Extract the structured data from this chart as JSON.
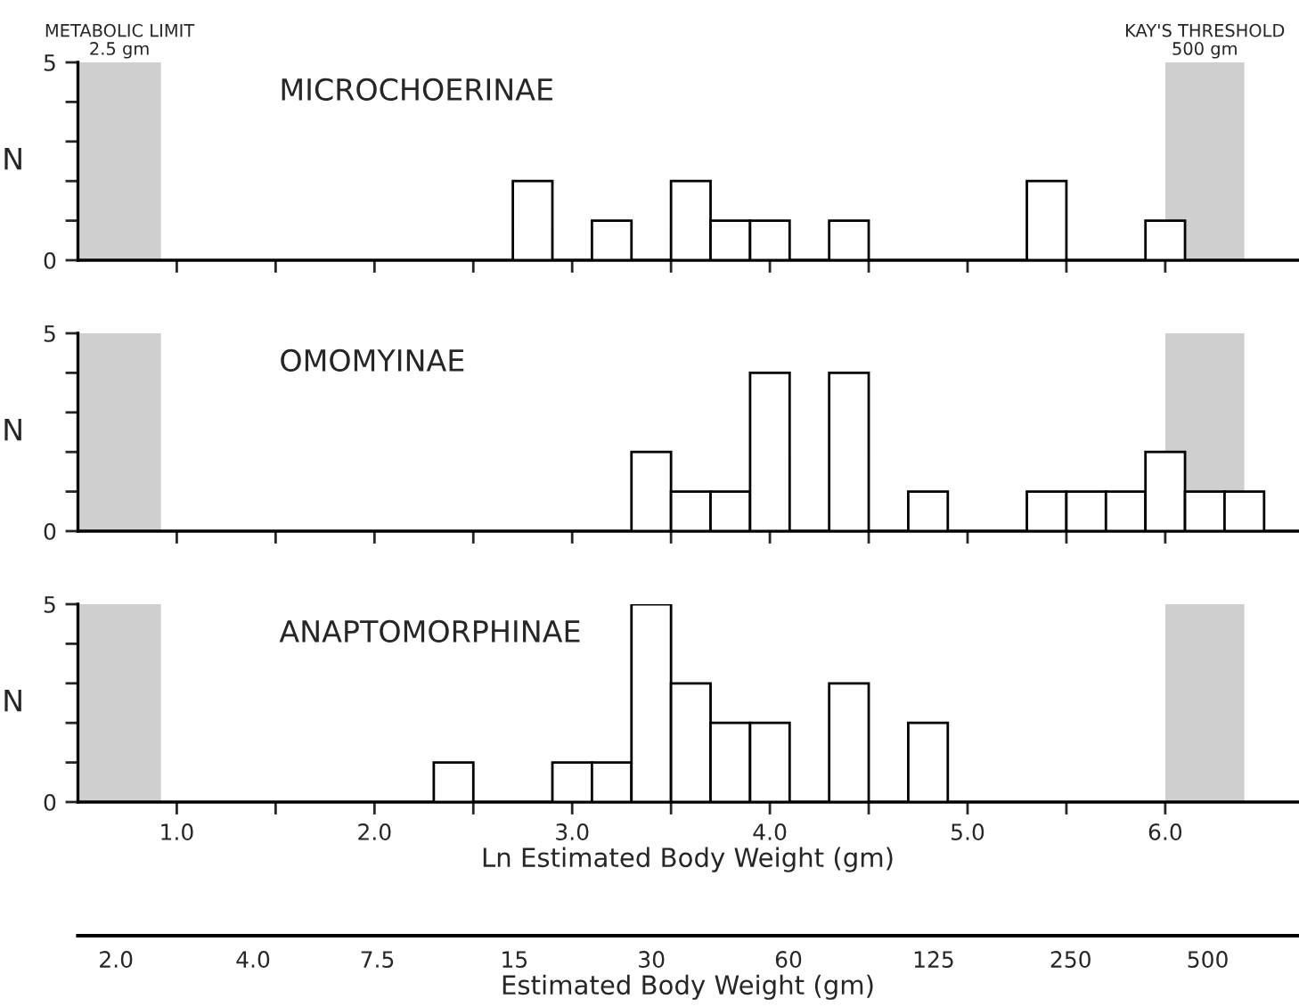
{
  "chart_data": [
    {
      "type": "histogram",
      "title": "MICROCHOERINAE",
      "ylabel": "N",
      "color": "#ffffff",
      "bins": [
        2.3,
        2.5,
        2.7,
        2.9,
        3.1,
        3.3,
        3.5,
        3.7,
        3.9,
        4.1,
        4.3,
        4.5,
        4.7,
        4.9,
        5.1,
        5.3,
        5.5,
        5.7,
        5.9,
        6.1,
        6.3,
        6.5
      ],
      "values": [
        0,
        0,
        2,
        0,
        1,
        0,
        2,
        1,
        1,
        0,
        1,
        0,
        0,
        0,
        0,
        2,
        0,
        0,
        1,
        0,
        0
      ],
      "xlim": [
        0.5,
        6.67
      ],
      "ylim": [
        0,
        5
      ],
      "xticks": [
        1.0,
        {
          "value": 1.5,
          "label": null
        },
        2.0,
        {
          "value": 2.5,
          "label": null
        },
        3.0,
        {
          "value": 3.5,
          "label": null
        },
        4.0,
        {
          "value": 4.5,
          "label": null
        },
        5.0,
        {
          "value": 5.5,
          "label": null
        },
        6.0
      ],
      "yticks": [
        0,
        {
          "value": 1,
          "label": null
        },
        {
          "value": 2,
          "label": null
        },
        {
          "value": 3,
          "label": null
        },
        {
          "value": 4,
          "label": null
        },
        5
      ],
      "tick_labels": "y",
      "grid": false,
      "bands": [
        {
          "axis": "x",
          "from": 0.5,
          "to": 0.92,
          "label": "METABOLIC LIMIT\n2.5 gm",
          "color": "#cfcfcf"
        },
        {
          "axis": "x",
          "from": 6.0,
          "to": 6.4,
          "label": "KAY'S THRESHOLD\n500 gm",
          "color": "#cfcfcf"
        }
      ]
    },
    {
      "type": "histogram",
      "title": "OMOMYINAE",
      "ylabel": "N",
      "color": "#ffffff",
      "bins": [
        2.3,
        2.5,
        2.7,
        2.9,
        3.1,
        3.3,
        3.5,
        3.7,
        3.9,
        4.1,
        4.3,
        4.5,
        4.7,
        4.9,
        5.1,
        5.3,
        5.5,
        5.7,
        5.9,
        6.1,
        6.3,
        6.5
      ],
      "values": [
        0,
        0,
        0,
        0,
        0,
        2,
        1,
        1,
        4,
        0,
        4,
        0,
        1,
        0,
        0,
        1,
        1,
        1,
        2,
        1,
        1
      ],
      "xlim": [
        0.5,
        6.67
      ],
      "ylim": [
        0,
        5
      ],
      "xticks": [
        1.0,
        {
          "value": 1.5,
          "label": null
        },
        2.0,
        {
          "value": 2.5,
          "label": null
        },
        3.0,
        {
          "value": 3.5,
          "label": null
        },
        4.0,
        {
          "value": 4.5,
          "label": null
        },
        5.0,
        {
          "value": 5.5,
          "label": null
        },
        6.0
      ],
      "yticks": [
        0,
        {
          "value": 1,
          "label": null
        },
        {
          "value": 2,
          "label": null
        },
        {
          "value": 3,
          "label": null
        },
        {
          "value": 4,
          "label": null
        },
        5
      ],
      "tick_labels": "y",
      "grid": false,
      "bands": [
        {
          "axis": "x",
          "from": 0.5,
          "to": 0.92,
          "color": "#cfcfcf"
        },
        {
          "axis": "x",
          "from": 6.0,
          "to": 6.4,
          "color": "#cfcfcf"
        }
      ]
    },
    {
      "type": "histogram",
      "title": "ANAPTOMORPHINAE",
      "ylabel": "N",
      "xlabel": "Ln Estimated Body Weight (gm)",
      "x2label": "Estimated Body Weight (gm)",
      "color": "#ffffff",
      "bins": [
        2.3,
        2.5,
        2.7,
        2.9,
        3.1,
        3.3,
        3.5,
        3.7,
        3.9,
        4.1,
        4.3,
        4.5,
        4.7,
        4.9,
        5.1,
        5.3,
        5.5,
        5.7,
        5.9,
        6.1,
        6.3,
        6.5
      ],
      "values": [
        1,
        0,
        0,
        1,
        1,
        5,
        3,
        2,
        2,
        0,
        3,
        0,
        2,
        0,
        0,
        0,
        0,
        0,
        0,
        0,
        0
      ],
      "xlim": [
        0.5,
        6.67
      ],
      "ylim": [
        0,
        5
      ],
      "x2lim": [
        1.65,
        788
      ],
      "log": "x2",
      "xticks": [
        {
          "value": 1,
          "label": "1.0"
        },
        {
          "value": 1.5,
          "label": null
        },
        {
          "value": 2,
          "label": "2.0"
        },
        {
          "value": 2.5,
          "label": null
        },
        {
          "value": 3,
          "label": "3.0"
        },
        {
          "value": 3.5,
          "label": null
        },
        {
          "value": 4,
          "label": "4.0"
        },
        {
          "value": 4.5,
          "label": null
        },
        {
          "value": 5,
          "label": "5.0"
        },
        {
          "value": 5.5,
          "label": null
        },
        {
          "value": 6,
          "label": "6.0"
        }
      ],
      "x2ticks": [
        {
          "value": 2,
          "label": "2.0"
        },
        {
          "value": 4,
          "label": "4.0"
        },
        7.5,
        15,
        30,
        60,
        125,
        250,
        500
      ],
      "yticks": [
        0,
        {
          "value": 1,
          "label": null
        },
        {
          "value": 2,
          "label": null
        },
        {
          "value": 3,
          "label": null
        },
        {
          "value": 4,
          "label": null
        },
        5
      ],
      "grid": false,
      "bands": [
        {
          "axis": "x",
          "from": 0.5,
          "to": 0.92,
          "color": "#cfcfcf"
        },
        {
          "axis": "x",
          "from": 6.0,
          "to": 6.4,
          "color": "#cfcfcf"
        }
      ]
    }
  ]
}
